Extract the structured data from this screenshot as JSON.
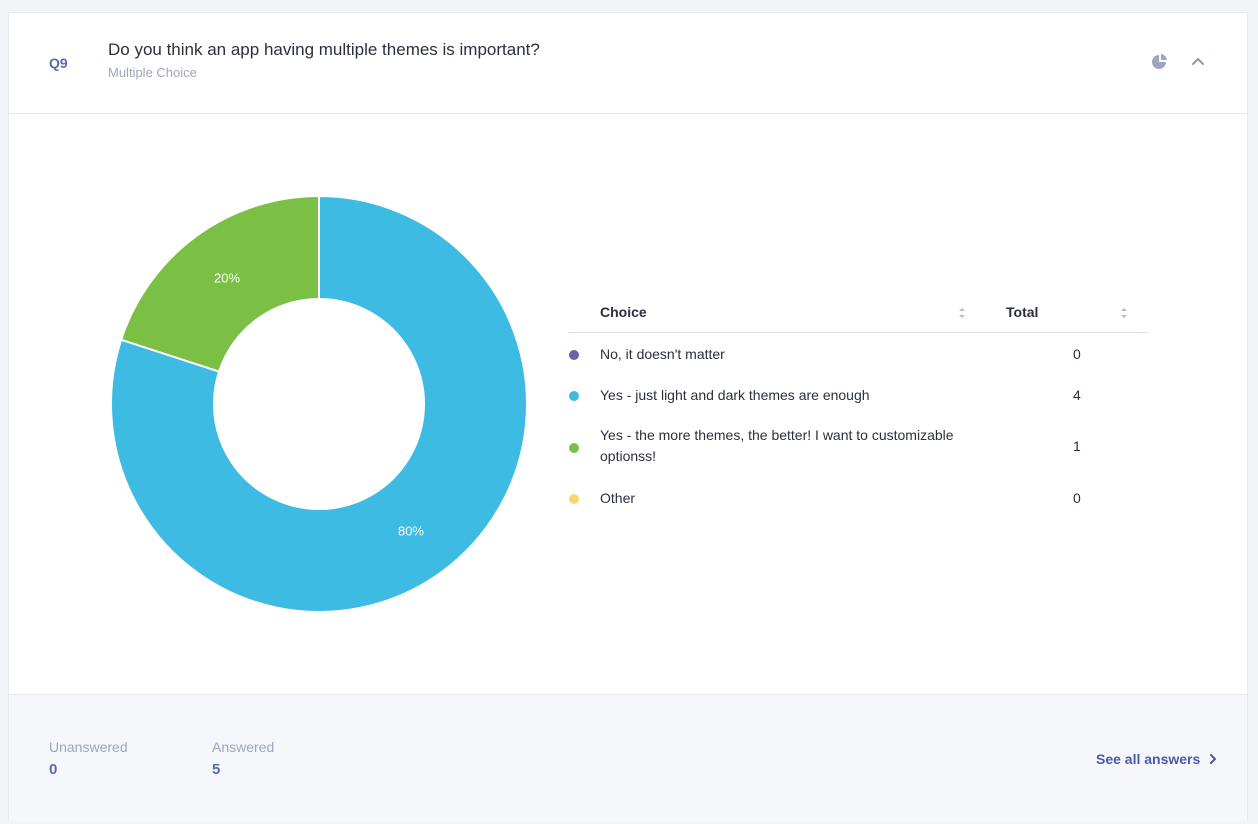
{
  "question": {
    "number": "Q9",
    "title": "Do you think an app having multiple themes is important?",
    "type": "Multiple Choice"
  },
  "header_icons": [
    "pie-chart-icon",
    "chevron-up-icon"
  ],
  "chart_data": {
    "type": "pie",
    "donut": true,
    "categories": [
      "No, it doesn't matter",
      "Yes - just light and dark themes are enough",
      "Yes - the more themes, the better! I want to customizable optionss!",
      "Other"
    ],
    "values": [
      0,
      4,
      1,
      0
    ],
    "percent_labels": [
      "",
      "80%",
      "20%",
      ""
    ],
    "colors": [
      "#6a62a8",
      "#3dbbe3",
      "#7bbf45",
      "#f7d672"
    ]
  },
  "table": {
    "headers": {
      "choice": "Choice",
      "total": "Total"
    },
    "rows": [
      {
        "label": "No, it doesn't matter",
        "total": "0",
        "color": "#6a62a8"
      },
      {
        "label": "Yes - just light and dark themes are enough",
        "total": "4",
        "color": "#3dbbe3"
      },
      {
        "label": "Yes - the more themes, the better! I want to customizable optionss!",
        "total": "1",
        "color": "#7bbf45"
      },
      {
        "label": "Other",
        "total": "0",
        "color": "#f7d672"
      }
    ]
  },
  "footer": {
    "unanswered_label": "Unanswered",
    "unanswered_value": "0",
    "answered_label": "Answered",
    "answered_value": "5",
    "see_all": "See all answers"
  }
}
